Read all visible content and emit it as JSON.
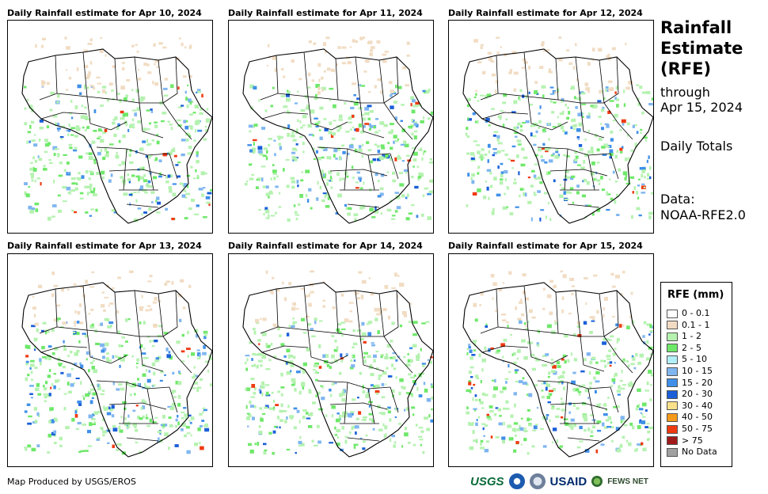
{
  "panels": [
    {
      "title": "Daily Rainfall estimate for Apr 10, 2024"
    },
    {
      "title": "Daily Rainfall estimate for Apr 11, 2024"
    },
    {
      "title": "Daily Rainfall estimate for Apr 12, 2024"
    },
    {
      "title": "Daily Rainfall estimate for Apr 13, 2024"
    },
    {
      "title": "Daily Rainfall estimate for Apr 14, 2024"
    },
    {
      "title": "Daily Rainfall estimate for Apr 15, 2024"
    }
  ],
  "side": {
    "title": "Rainfall Estimate (RFE)",
    "title_line1": "Rainfall",
    "title_line2": "Estimate",
    "title_line3": "(RFE)",
    "through_line1": "through",
    "through_line2": "Apr 15, 2024",
    "totals": "Daily Totals",
    "source_line1": "Data:",
    "source_line2": "NOAA-RFE2.0"
  },
  "legend": {
    "title": "RFE (mm)",
    "items": [
      {
        "label": "0 - 0.1",
        "color": "#ffffff"
      },
      {
        "label": "0.1 - 1",
        "color": "#f1dcc3"
      },
      {
        "label": "1 - 2",
        "color": "#b5f2b0"
      },
      {
        "label": "2 - 5",
        "color": "#6fe86a"
      },
      {
        "label": "5 - 10",
        "color": "#b2f0f7"
      },
      {
        "label": "10 - 15",
        "color": "#7fb6f0"
      },
      {
        "label": "15 - 20",
        "color": "#3f8fe8"
      },
      {
        "label": "20 - 30",
        "color": "#1a5fd8"
      },
      {
        "label": "30 - 40",
        "color": "#fbe08a"
      },
      {
        "label": "40 - 50",
        "color": "#f59a1a"
      },
      {
        "label": "50 - 75",
        "color": "#ee3a10"
      },
      {
        "label": "> 75",
        "color": "#a11a1a"
      },
      {
        "label": "No Data",
        "color": "#a0a0a0"
      }
    ]
  },
  "footer": {
    "producer": "Map Produced by USGS/EROS",
    "logo_usgs": "USGS",
    "logo_usaid": "USAID",
    "logo_fews": "FEWS NET"
  }
}
